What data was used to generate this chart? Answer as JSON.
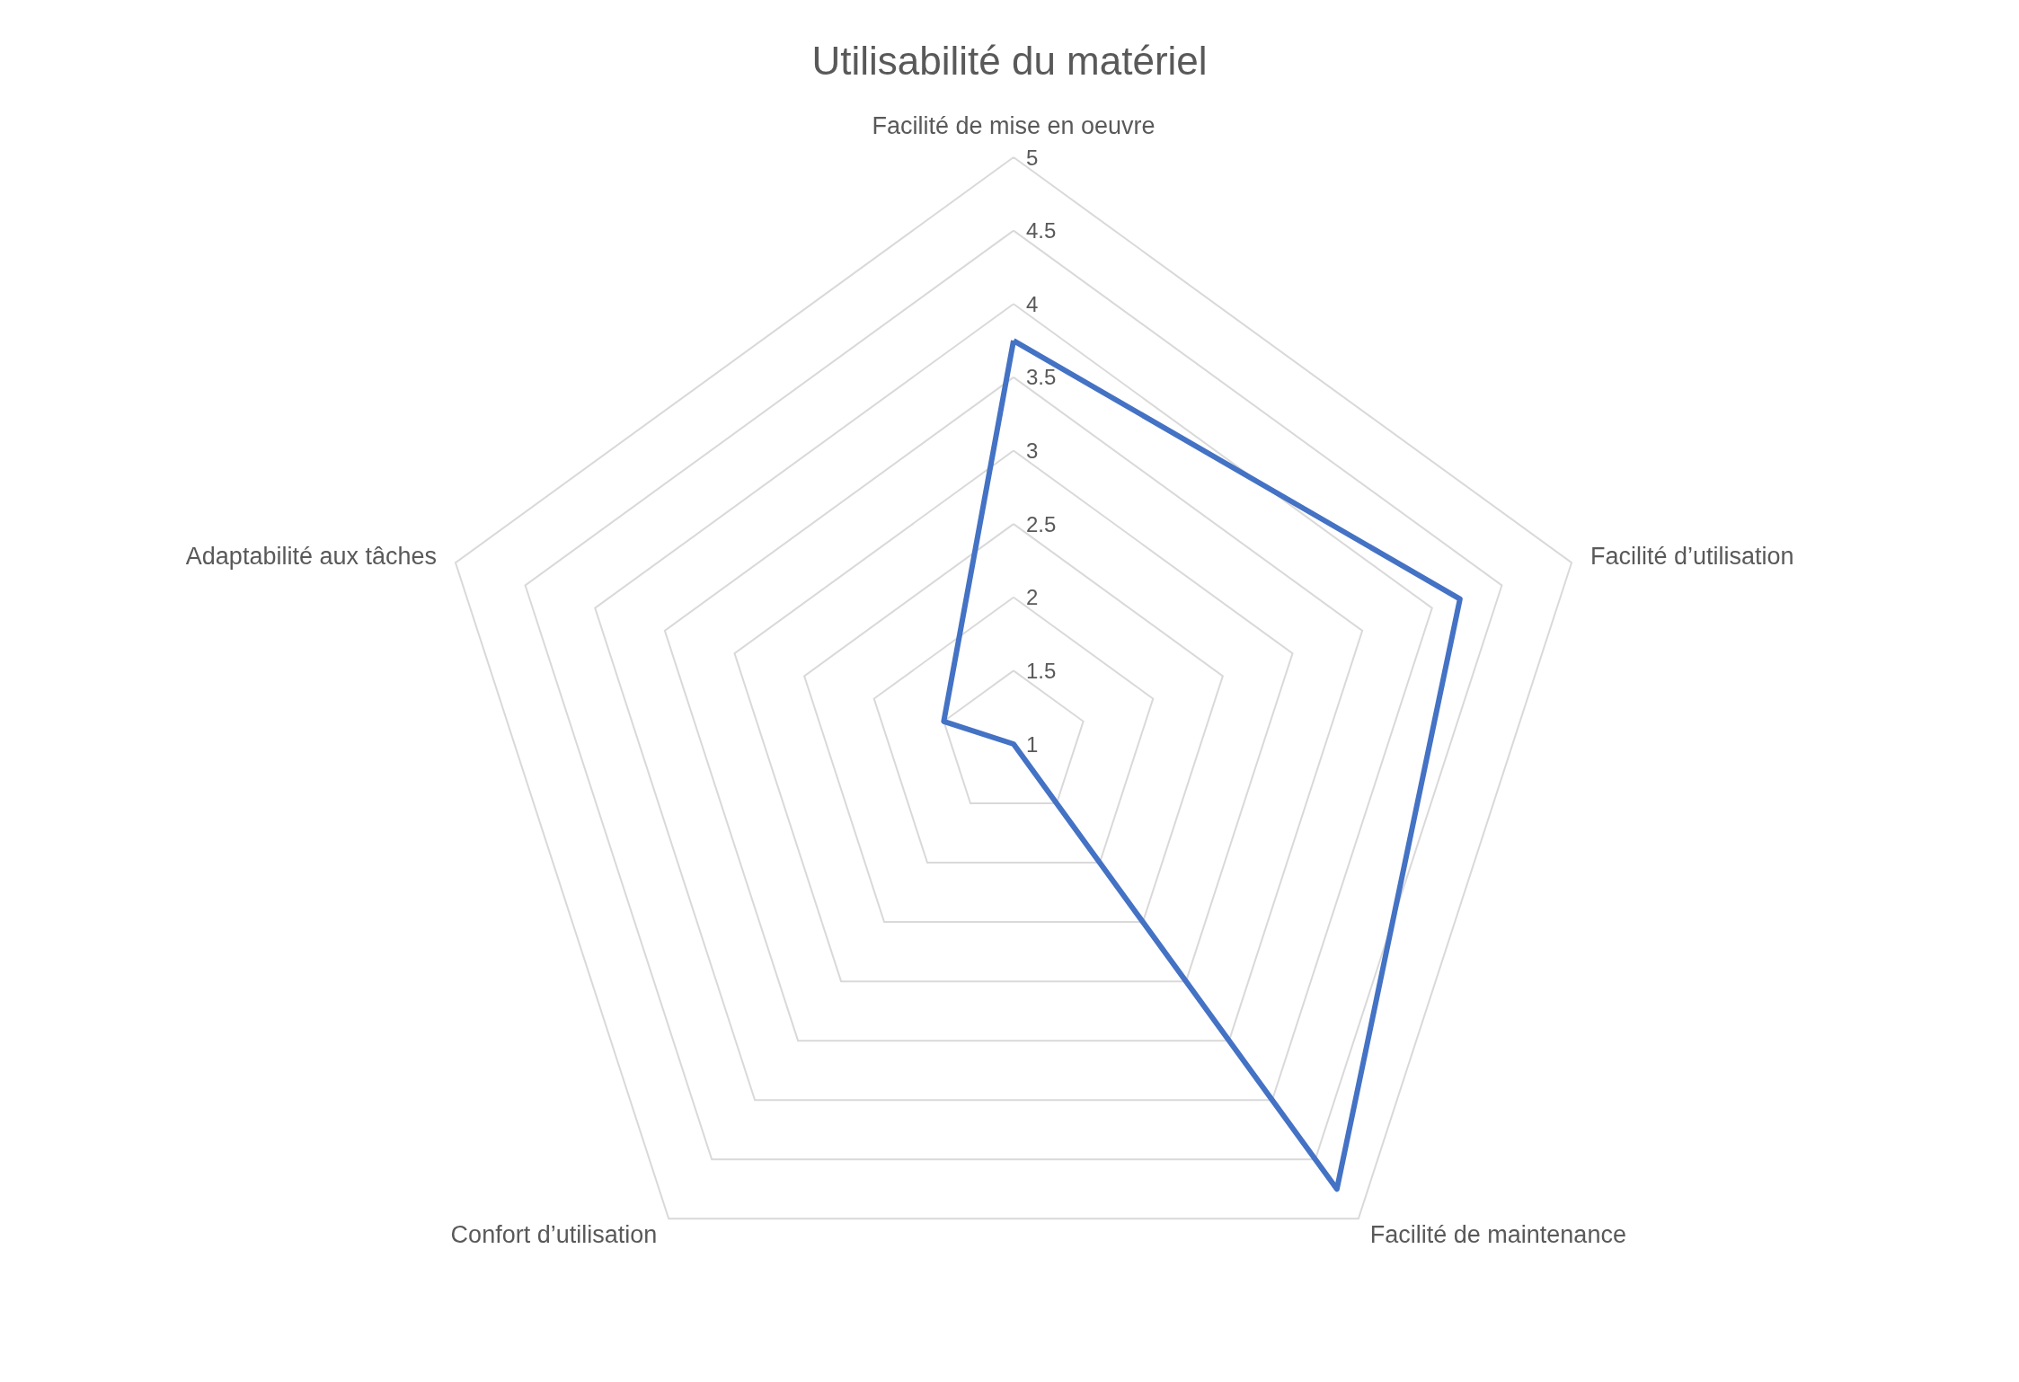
{
  "chart_data": {
    "type": "radar",
    "title": "Utilisabilité du matériel",
    "categories": [
      "Facilité de mise en oeuvre",
      "Facilité d’utilisation",
      "Facilité de maintenance",
      "Confort d’utilisation",
      "Adaptabilité aux tâches"
    ],
    "series": [
      {
        "color": "#4472c4",
        "values": [
          3.75,
          4.2,
          4.75,
          1,
          1.5
        ]
      }
    ],
    "ylim": [
      1,
      5
    ],
    "yticks": [
      1,
      1.5,
      2,
      2.5,
      3,
      3.5,
      4,
      4.5,
      5
    ],
    "grid": true,
    "marker": "none",
    "line_style": "solid"
  }
}
